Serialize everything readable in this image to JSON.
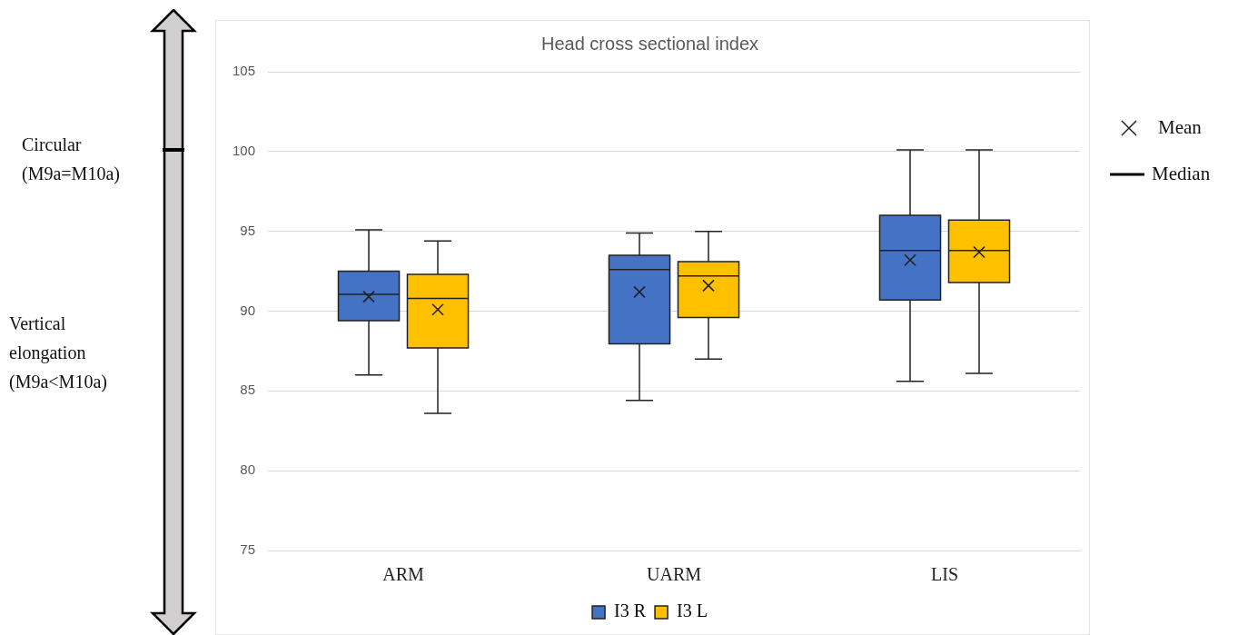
{
  "chart_data": {
    "type": "box",
    "title": "Head cross sectional index",
    "categories": [
      "ARM",
      "UARM",
      "LIS"
    ],
    "series": [
      {
        "name": "I3 R",
        "color": "#4472c4",
        "boxes": [
          {
            "low": 86.0,
            "q1": 89.4,
            "median": 91.05,
            "q3": 92.5,
            "high": 95.1,
            "mean": 90.9
          },
          {
            "low": 84.4,
            "q1": 87.95,
            "median": 92.6,
            "q3": 93.5,
            "high": 94.9,
            "mean": 91.2
          },
          {
            "low": 85.6,
            "q1": 90.7,
            "median": 93.8,
            "q3": 96.0,
            "high": 100.1,
            "mean": 93.2
          }
        ]
      },
      {
        "name": "I3 L",
        "color": "#ffc000",
        "boxes": [
          {
            "low": 83.6,
            "q1": 87.7,
            "median": 90.8,
            "q3": 92.3,
            "high": 94.4,
            "mean": 90.1
          },
          {
            "low": 87.0,
            "q1": 89.6,
            "median": 92.2,
            "q3": 93.1,
            "high": 95.0,
            "mean": 91.6
          },
          {
            "low": 86.1,
            "q1": 91.8,
            "median": 93.8,
            "q3": 95.7,
            "high": 100.1,
            "mean": 93.7
          }
        ]
      }
    ],
    "ylim": [
      75,
      105
    ],
    "yticks": [
      75,
      80,
      85,
      90,
      95,
      100,
      105
    ],
    "grid": "y",
    "legend": "bottom",
    "marker": "cross",
    "annotations": [
      "Circular (M9a=M10a)",
      "Vertical elongation (M9a<M10a)",
      "Mean",
      "Median"
    ]
  }
}
